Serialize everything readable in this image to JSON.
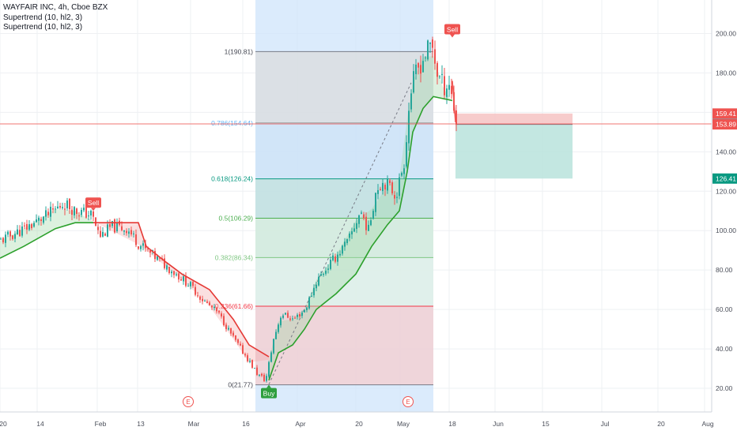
{
  "legend": {
    "title": "WAYFAIR INC, 4h, Cboe BZX",
    "indicator_1": "Supertrend (10, hl2, 3)",
    "indicator_2": "Supertrend (10, hl2, 3)"
  },
  "colors": {
    "up_candle": "#26a69a",
    "down_candle": "#ef5350",
    "supertrend_up": "#2ca02c",
    "supertrend_down": "#e53935",
    "time_range_fill": "#cfe4fb",
    "sell_label": "#ef5350",
    "buy_label": "#2e9f3e",
    "grid": "#eef0f3",
    "axis_text": "#4a4e59",
    "current_price_line": "#ef5350"
  },
  "chart_data": {
    "type": "candlestick",
    "symbol": "WAYFAIR INC",
    "interval": "4h",
    "exchange": "Cboe BZX",
    "y_axis": {
      "ticks": [
        20,
        40,
        60,
        80,
        100,
        120,
        140,
        160,
        180,
        200
      ],
      "tick_labels": [
        "20.00",
        "40.00",
        "60.00",
        "80.00",
        "100.00",
        "120.00",
        "140.00",
        "160.00",
        "180.00",
        "200.00"
      ],
      "range": [
        8,
        217
      ]
    },
    "x_axis": {
      "tick_labels": [
        "20",
        "14",
        "Feb",
        "13",
        "Mar",
        "16",
        "Apr",
        "20",
        "May",
        "18",
        "Jun",
        "15",
        "Jul",
        "20",
        "Aug"
      ],
      "tick_indices": [
        0,
        47,
        123,
        174,
        241,
        307,
        376,
        450,
        506,
        568,
        626,
        686,
        761,
        832,
        891
      ],
      "index_range": [
        0,
        932
      ]
    },
    "price_path": [
      [
        0,
        95
      ],
      [
        30,
        101
      ],
      [
        60,
        108
      ],
      [
        80,
        114
      ],
      [
        95,
        110
      ],
      [
        115,
        108
      ],
      [
        125,
        97
      ],
      [
        140,
        102
      ],
      [
        160,
        101
      ],
      [
        175,
        93
      ],
      [
        200,
        85
      ],
      [
        225,
        77
      ],
      [
        240,
        72
      ],
      [
        255,
        65
      ],
      [
        275,
        58
      ],
      [
        295,
        45
      ],
      [
        312,
        35
      ],
      [
        325,
        27
      ],
      [
        335,
        24
      ],
      [
        345,
        45
      ],
      [
        355,
        58
      ],
      [
        370,
        55
      ],
      [
        385,
        60
      ],
      [
        400,
        75
      ],
      [
        420,
        85
      ],
      [
        440,
        95
      ],
      [
        455,
        110
      ],
      [
        465,
        100
      ],
      [
        475,
        122
      ],
      [
        485,
        125
      ],
      [
        500,
        118
      ],
      [
        510,
        135
      ],
      [
        518,
        170
      ],
      [
        525,
        180
      ],
      [
        535,
        188
      ],
      [
        545,
        195
      ],
      [
        552,
        180
      ],
      [
        560,
        173
      ],
      [
        567,
        175
      ],
      [
        572,
        165
      ],
      [
        576,
        155
      ]
    ],
    "supertrend_down_path": [
      [
        118,
        104
      ],
      [
        175,
        104
      ],
      [
        185,
        92
      ],
      [
        210,
        84
      ],
      [
        230,
        78
      ],
      [
        265,
        70
      ],
      [
        295,
        55
      ],
      [
        315,
        42
      ],
      [
        340,
        36
      ]
    ],
    "supertrend_up_segments": [
      [
        [
          0,
          86
        ],
        [
          30,
          92
        ],
        [
          70,
          101
        ],
        [
          95,
          104
        ],
        [
          118,
          104
        ]
      ],
      [
        [
          340,
          24
        ],
        [
          352,
          38
        ],
        [
          370,
          42
        ],
        [
          385,
          50
        ],
        [
          400,
          60
        ],
        [
          425,
          68
        ],
        [
          450,
          78
        ],
        [
          470,
          92
        ],
        [
          490,
          103
        ],
        [
          505,
          110
        ],
        [
          515,
          130
        ],
        [
          522,
          150
        ],
        [
          535,
          162
        ],
        [
          548,
          168
        ],
        [
          560,
          167
        ],
        [
          572,
          166
        ]
      ]
    ],
    "signals": [
      {
        "type": "sell",
        "index": 118,
        "price": 110,
        "label": "Sell"
      },
      {
        "type": "buy",
        "index": 340,
        "price": 21.77,
        "label": "Buy"
      },
      {
        "type": "sell",
        "index": 572,
        "price": 198,
        "label": "Sell"
      }
    ],
    "earnings_markers": [
      {
        "index": 238,
        "label": "E"
      },
      {
        "index": 516,
        "label": "E"
      }
    ],
    "time_highlight": {
      "start_index": 323,
      "end_index": 548
    },
    "fibonacci": {
      "start_index": 323,
      "end_index": 548,
      "levels": [
        {
          "ratio": "1",
          "price": 190.81,
          "label": "1(190.81)",
          "text_color": "#434651",
          "line_color": "#787b86",
          "fill": "#dcdcdc"
        },
        {
          "ratio": "0.786",
          "price": 154.64,
          "label": "0.786(154.64)",
          "text_color": "#64b5f6",
          "line_color": "#9e9e9e",
          "fill": "#cde3f7"
        },
        {
          "ratio": "0.618",
          "price": 126.24,
          "label": "0.618(126.24)",
          "text_color": "#089981",
          "line_color": "#089981",
          "fill": "#bfe0da"
        },
        {
          "ratio": "0.5",
          "price": 106.29,
          "label": "0.5(106.29)",
          "text_color": "#4caf50",
          "line_color": "#4caf50",
          "fill": "#d4ecd5"
        },
        {
          "ratio": "0.382",
          "price": 86.34,
          "label": "0.382(86.34)",
          "text_color": "#81c784",
          "line_color": "#81c784",
          "fill": "#e3f2e4"
        },
        {
          "ratio": "0.236",
          "price": 61.66,
          "label": "0.236(61.66)",
          "text_color": "#f23645",
          "line_color": "#f23645",
          "fill": "#f8cccc"
        },
        {
          "ratio": "0",
          "price": 21.77,
          "label": "0(21.77)",
          "text_color": "#434651",
          "line_color": "#787b86",
          "fill": "#f8cccc"
        }
      ]
    },
    "trendline": {
      "from": [
        340,
        22
      ],
      "to": [
        520,
        175
      ]
    },
    "position_tool": {
      "type": "short",
      "start_index": 576,
      "end_index": 724,
      "entry": 153.89,
      "stop": 159.41,
      "target": 126.41
    },
    "price_labels": [
      {
        "price": 159.41,
        "text": "159.41",
        "color": "#ef5350"
      },
      {
        "price": 154.16,
        "text": "154.16",
        "color": "#787b86"
      },
      {
        "price": 153.89,
        "text": "153.89",
        "color": "#ef5350"
      },
      {
        "price": 126.41,
        "text": "126.41",
        "color": "#089981"
      }
    ],
    "current_price": 154.16
  }
}
